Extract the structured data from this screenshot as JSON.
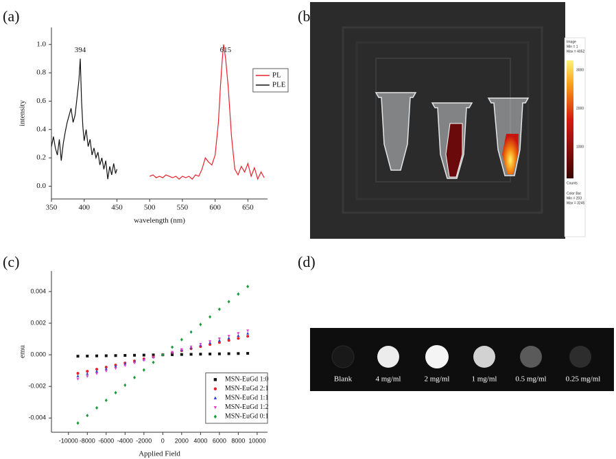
{
  "panel_labels": [
    "(a)",
    "(b)",
    "(c)",
    "(d)"
  ],
  "chart_data": [
    {
      "type": "line",
      "x_label": "wavelength (nm)",
      "y_label": "intensity",
      "xlim": [
        350,
        680
      ],
      "xticks": [
        350,
        400,
        450,
        500,
        550,
        600,
        650
      ],
      "ylim": [
        -0.09,
        1.12
      ],
      "yticks": [
        {
          "value": 0,
          "label": "0.0"
        },
        0.2,
        0.4,
        0.6,
        0.8,
        {
          "value": 1,
          "label": "1.0"
        }
      ],
      "legend": "upper right",
      "annotations": [
        "394",
        "615"
      ],
      "series": [
        {
          "name": "PL",
          "color": "#e8202a",
          "x": [
            500,
            505,
            510,
            515,
            520,
            525,
            530,
            535,
            540,
            545,
            550,
            555,
            560,
            565,
            570,
            575,
            580,
            585,
            590,
            595,
            600,
            605,
            608,
            611,
            613,
            616,
            620,
            625,
            630,
            635,
            640,
            645,
            650,
            655,
            660,
            665,
            670,
            675
          ],
          "values": [
            0.07,
            0.08,
            0.06,
            0.07,
            0.06,
            0.08,
            0.07,
            0.06,
            0.07,
            0.05,
            0.07,
            0.06,
            0.07,
            0.05,
            0.08,
            0.07,
            0.12,
            0.2,
            0.17,
            0.15,
            0.22,
            0.45,
            0.7,
            0.9,
            1.0,
            0.9,
            0.7,
            0.35,
            0.12,
            0.08,
            0.14,
            0.1,
            0.16,
            0.07,
            0.13,
            0.05,
            0.1,
            0.06
          ]
        },
        {
          "name": "PLE",
          "color": "#111111",
          "x": [
            350,
            353,
            356,
            359,
            362,
            365,
            368,
            371,
            374,
            377,
            380,
            383,
            386,
            389,
            392,
            394,
            396,
            398,
            400,
            403,
            406,
            409,
            412,
            415,
            418,
            421,
            424,
            427,
            430,
            433,
            436,
            439,
            442,
            445,
            448,
            450
          ],
          "values": [
            0.28,
            0.35,
            0.27,
            0.22,
            0.33,
            0.18,
            0.3,
            0.38,
            0.45,
            0.5,
            0.55,
            0.45,
            0.5,
            0.62,
            0.75,
            0.9,
            0.6,
            0.42,
            0.32,
            0.4,
            0.28,
            0.33,
            0.22,
            0.27,
            0.2,
            0.24,
            0.15,
            0.2,
            0.12,
            0.18,
            0.05,
            0.14,
            0.08,
            0.16,
            0.09,
            0.12
          ]
        }
      ]
    },
    {
      "type": "scatter",
      "x_label": "Applied Field",
      "y_label": "emu",
      "xlim": [
        -11800,
        11100
      ],
      "xticks": [
        -10000,
        -8000,
        -6000,
        -4000,
        -2000,
        0,
        2000,
        4000,
        6000,
        8000,
        10000
      ],
      "ylim": [
        -0.0049,
        0.0053
      ],
      "yticks": [
        -0.004,
        -0.002,
        {
          "value": 0,
          "label": "0.000"
        },
        0.002,
        0.004
      ],
      "legend": "lower right",
      "x": [
        -9000,
        -8000,
        -7000,
        -6000,
        -5000,
        -4000,
        -3000,
        -2000,
        -1000,
        0,
        1000,
        2000,
        3000,
        4000,
        5000,
        6000,
        7000,
        8000,
        9000
      ],
      "series": [
        {
          "name": "MSN-EuGd 1:0",
          "color": "#111111",
          "marker": "square",
          "values": [
            -9e-05,
            -8e-05,
            -7e-05,
            -6e-05,
            -5e-05,
            -4e-05,
            -3e-05,
            -2e-05,
            -1e-05,
            0,
            1e-05,
            2e-05,
            3e-05,
            4e-05,
            5e-05,
            6e-05,
            7e-05,
            8e-05,
            9e-05
          ]
        },
        {
          "name": "MSN-EuGd 2:1",
          "color": "#e8202a",
          "marker": "circle",
          "values": [
            -0.00117,
            -0.00104,
            -0.00091,
            -0.00078,
            -0.00065,
            -0.00052,
            -0.00039,
            -0.00026,
            -0.00013,
            0,
            0.00013,
            0.00026,
            0.00039,
            0.00052,
            0.00065,
            0.00078,
            0.00091,
            0.00104,
            0.00117
          ]
        },
        {
          "name": "MSN-EuGd 1:1",
          "color": "#2a3fd0",
          "marker": "triangle",
          "values": [
            -0.00135,
            -0.0012,
            -0.00105,
            -0.0009,
            -0.00075,
            -0.0006,
            -0.00045,
            -0.0003,
            -0.00015,
            0,
            0.00015,
            0.0003,
            0.00045,
            0.0006,
            0.00075,
            0.0009,
            0.00105,
            0.0012,
            0.00135
          ]
        },
        {
          "name": "MSN-EuGd 1:2",
          "color": "#e040c8",
          "marker": "triangle-down",
          "values": [
            -0.00153,
            -0.00136,
            -0.00119,
            -0.00102,
            -0.00085,
            -0.00068,
            -0.00051,
            -0.00034,
            -0.00017,
            0,
            0.00017,
            0.00034,
            0.00051,
            0.00068,
            0.00085,
            0.00102,
            0.00119,
            0.00136,
            0.00153
          ]
        },
        {
          "name": "MSN-EuGd 0:1",
          "color": "#1a9a3a",
          "marker": "diamond",
          "values": [
            -0.00432,
            -0.00384,
            -0.00336,
            -0.00288,
            -0.0024,
            -0.00192,
            -0.00144,
            -0.00096,
            -0.00048,
            0,
            0.00048,
            0.00096,
            0.00144,
            0.00192,
            0.0024,
            0.00288,
            0.00336,
            0.00384,
            0.00432
          ]
        }
      ]
    }
  ],
  "image_b": {
    "colorbar": {
      "header": [
        "Image",
        "Min = 1",
        "Max = 4052"
      ],
      "ticks": [
        "3000",
        "2000",
        "1000"
      ],
      "unit": "Counts",
      "footer": [
        "Color Bar",
        "Min = 203",
        "Max = 3245"
      ]
    }
  },
  "image_d": {
    "labels": [
      "Blank",
      "4 mg/ml",
      "2 mg/ml",
      "1 mg/ml",
      "0.5 mg/ml",
      "0.25 mg/ml"
    ]
  }
}
